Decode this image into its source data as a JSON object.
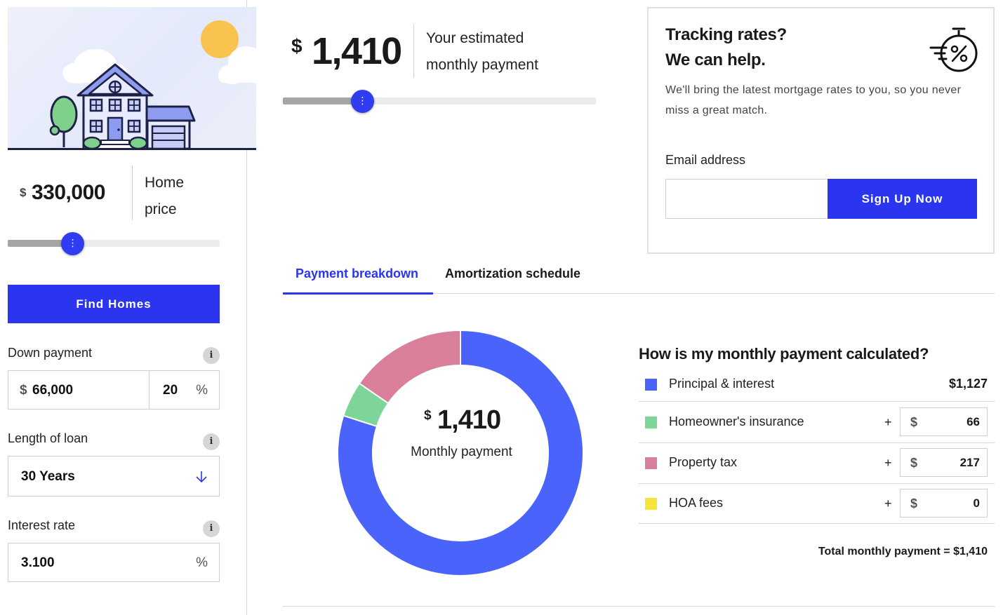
{
  "home_price": {
    "currency": "$",
    "value": "330,000",
    "label_line1": "Home",
    "label_line2": "price",
    "slider_fraction": 0.3
  },
  "find_homes_label": "Find Homes",
  "down_payment": {
    "label": "Down payment",
    "currency": "$",
    "amount": "66,000",
    "percent": "20",
    "percent_symbol": "%"
  },
  "loan_length": {
    "label": "Length of loan",
    "value": "30 Years"
  },
  "interest_rate": {
    "label": "Interest rate",
    "value": "3.100",
    "percent_symbol": "%"
  },
  "info_glyph": "i",
  "estimate": {
    "currency": "$",
    "value": "1,410",
    "label_line1": "Your estimated",
    "label_line2": "monthly payment",
    "slider_fraction": 0.25
  },
  "tracking": {
    "title_line1": "Tracking rates?",
    "title_line2": "We can help.",
    "text": "We'll bring the latest mortgage rates to you, so you never miss a great match.",
    "email_label": "Email address",
    "email_placeholder": "",
    "signup_label": "Sign Up Now",
    "icon": "stopwatch-percent-icon"
  },
  "tabs": [
    {
      "label": "Payment breakdown",
      "active": true
    },
    {
      "label": "Amortization schedule",
      "active": false
    }
  ],
  "donut": {
    "currency": "$",
    "value": "1,410",
    "label": "Monthly payment"
  },
  "breakdown": {
    "title": "How is my monthly payment calculated?",
    "currency": "$",
    "plus": "+",
    "rows": [
      {
        "name": "Principal & interest",
        "amount": "$1,127",
        "value": 1127,
        "color": "#4a63fb"
      },
      {
        "name": "Homeowner's insurance",
        "amount": "66",
        "value": 66,
        "color": "#7ed59a"
      },
      {
        "name": "Property tax",
        "amount": "217",
        "value": 217,
        "color": "#d97f9a"
      },
      {
        "name": "HOA fees",
        "amount": "0",
        "value": 0,
        "color": "#f5e43a"
      }
    ],
    "total": "Total monthly payment = $1,410"
  },
  "colors": {
    "accent": "#2b35ef",
    "principal": "#4a63fb",
    "insurance": "#7ed59a",
    "tax": "#d97f9a",
    "hoa": "#f5e43a"
  }
}
